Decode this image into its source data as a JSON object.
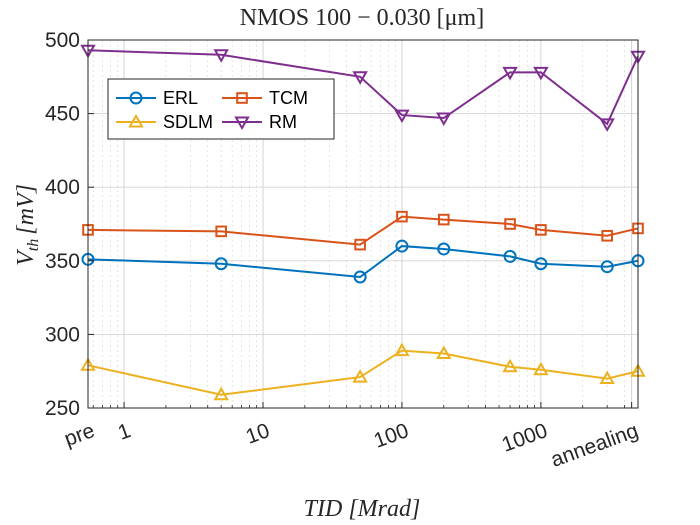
{
  "chart_data": {
    "type": "line",
    "title": "NMOS 100 − 0.030 [μm]",
    "xlabel": "TID [Mrad]",
    "ylabel": "V_th [mV]",
    "xscale": "log",
    "xlim": [
      0.55,
      5000
    ],
    "ylim": [
      250,
      500
    ],
    "xticks": [
      {
        "value": 0.55,
        "label": "pre"
      },
      {
        "value": 1,
        "label": "1"
      },
      {
        "value": 10,
        "label": "10"
      },
      {
        "value": 100,
        "label": "100"
      },
      {
        "value": 1000,
        "label": "1000"
      },
      {
        "value": 4500,
        "label": "annealing"
      }
    ],
    "yticks": [
      250,
      300,
      350,
      400,
      450,
      500
    ],
    "grid": true,
    "legend_position": "top-left",
    "x": [
      0.55,
      5,
      50,
      100,
      200,
      600,
      1000,
      3000,
      5000
    ],
    "series": [
      {
        "name": "ERL",
        "color": "#0072BD",
        "marker": "circle",
        "values": [
          351,
          348,
          339,
          360,
          358,
          353,
          348,
          346,
          350
        ]
      },
      {
        "name": "TCM",
        "color": "#D95319",
        "marker": "square",
        "values": [
          371,
          370,
          361,
          380,
          378,
          375,
          371,
          367,
          372
        ]
      },
      {
        "name": "SDLM",
        "color": "#EDB120",
        "marker": "triangle-up",
        "values": [
          279,
          259,
          271,
          289,
          287,
          278,
          276,
          270,
          275
        ]
      },
      {
        "name": "RM",
        "color": "#7E2F8E",
        "marker": "triangle-down",
        "values": [
          493,
          490,
          475,
          449,
          447,
          478,
          478,
          443,
          489
        ]
      }
    ]
  }
}
